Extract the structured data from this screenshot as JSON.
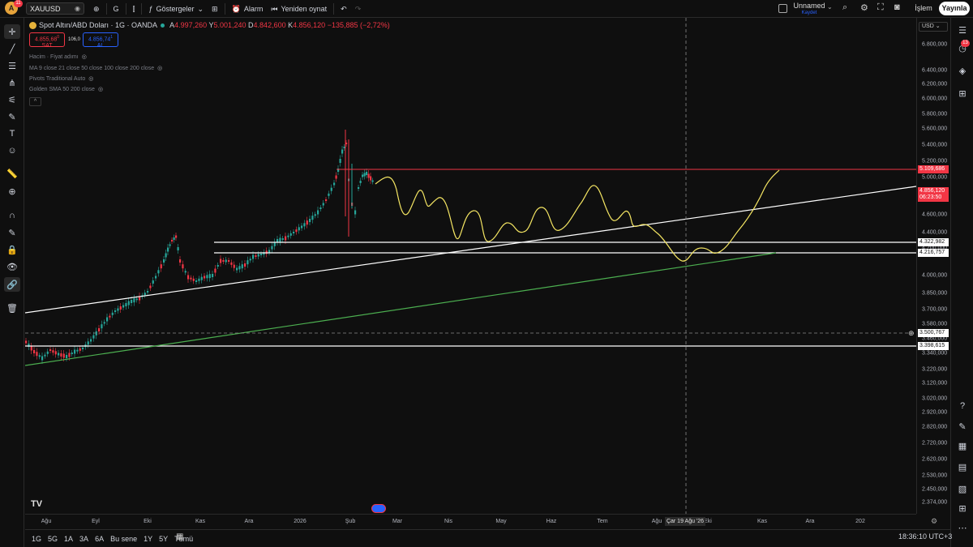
{
  "topbar": {
    "avatar_letter": "A",
    "avatar_badge": "11",
    "symbol": "XAUUSD",
    "interval": "G",
    "indicators_label": "Göstergeler",
    "alarm_label": "Alarm",
    "replay_label": "Yeniden oynat",
    "layout_name": "Unnamed",
    "layout_status": "Kaydet",
    "trade_label": "İşlem",
    "publish_label": "Yayınla"
  },
  "legend": {
    "title": "Spot Altın/ABD Doları · 1G · OANDA",
    "ohlc": {
      "a_label": "A",
      "a": "4.997,260",
      "y_label": "Y",
      "y": "5.001,240",
      "d_label": "D",
      "d": "4.842,600",
      "k_label": "K",
      "k": "4.856,120",
      "change": "−135,885 (−2,72%)"
    },
    "sell_price": "4.855,68",
    "sell_sup": "0",
    "sell_label": "SAT",
    "spread": "106,0",
    "buy_price": "4.856,74",
    "buy_sup": "1",
    "buy_label": "AL",
    "indicators": [
      "Hacim · Fiyat adımı",
      "MA 9 close 21 close 50 close 100 close 200 close",
      "Pivots Traditional Auto",
      "Golden SMA 50 200 close"
    ],
    "collapse": "^"
  },
  "price_axis": {
    "currency": "USD",
    "ticks": [
      "6.800,000",
      "6.400,000",
      "6.200,000",
      "6.000,000",
      "5.800,000",
      "5.600,000",
      "5.400,000",
      "5.200,000",
      "5.000,000",
      "4.800,000",
      "4.600,000",
      "4.400,000",
      "4.200,000",
      "4.000,000",
      "3.850,000",
      "3.700,000",
      "3.580,000",
      "3.460,000",
      "3.340,000",
      "3.220,000",
      "3.120,000",
      "3.020,000",
      "2.920,000",
      "2.820,000",
      "2.720,000",
      "2.620,000",
      "2.530,000",
      "2.450,000",
      "2.374,000"
    ],
    "labels": {
      "line_5109": "5.109,686",
      "current": "4.856,120",
      "countdown": "06:23:50",
      "line_4322": "4.322,982",
      "line_4216": "4.216,757",
      "cross": "3.500,767",
      "line_3398": "3.398,615"
    }
  },
  "time_axis": {
    "labels": [
      "Ağu",
      "Eyl",
      "Eki",
      "Kas",
      "Ara",
      "2026",
      "Şub",
      "Mar",
      "Nis",
      "May",
      "Haz",
      "Tem",
      "Ağu",
      "Eki",
      "Kas",
      "Ara",
      "202"
    ],
    "crosshair_date": "Çar 19 Ağu '26"
  },
  "bottombar": {
    "ranges": [
      "1G",
      "5G",
      "1A",
      "3A",
      "6A",
      "Bu sene",
      "1Y",
      "5Y",
      "Tümü"
    ],
    "clock": "18:36:10 UTC+3"
  },
  "colors": {
    "bg": "#0f0f0f",
    "up": "#26a69a",
    "down": "#f23645",
    "red_line": "#f23645",
    "white_line": "#ffffff",
    "green_trend": "#4caf50",
    "projection": "#f5e663"
  }
}
